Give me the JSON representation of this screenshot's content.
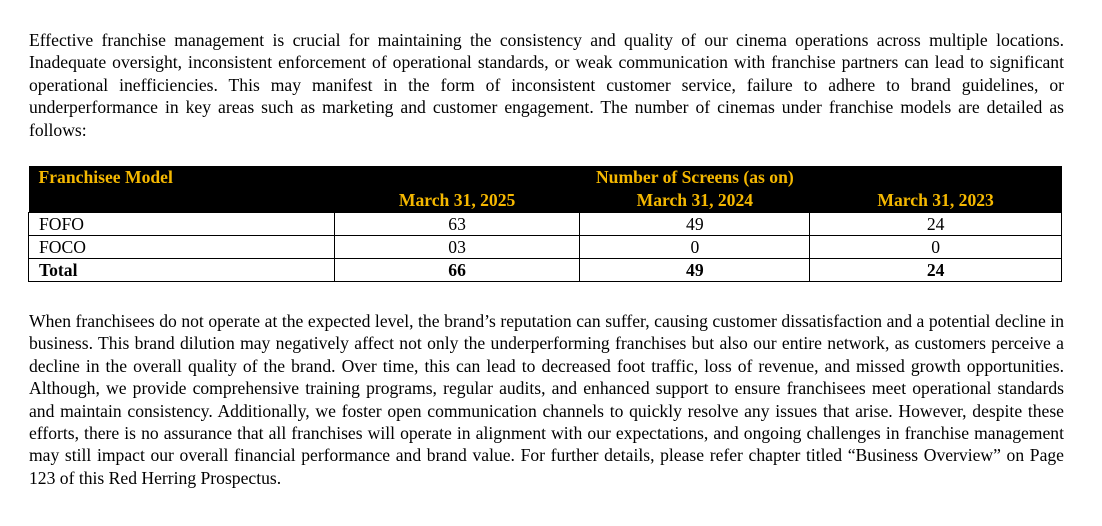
{
  "paragraphs": [
    "Effective franchise management is crucial for maintaining the consistency and quality of our cinema operations across multiple locations. Inadequate oversight, inconsistent enforcement of operational standards, or weak communication with franchise partners can lead to significant operational inefficiencies. This may manifest in the form of inconsistent customer service, failure to adhere to brand guidelines, or underperformance in key areas such as marketing and customer engagement. The number of cinemas under franchise models are detailed as follows:",
    "When franchisees do not operate at the expected level, the brand’s reputation can suffer, causing customer dissatisfaction and a potential decline in business. This brand dilution may negatively affect not only the underperforming franchises but also our entire network, as customers perceive a decline in the overall quality of the brand. Over time, this can lead to decreased foot traffic, loss of revenue, and missed growth opportunities. Although, we provide comprehensive training programs, regular audits, and enhanced support to ensure franchisees meet operational standards and maintain consistency. Additionally, we foster open communication channels to quickly resolve any issues that arise. However, despite these efforts, there is no assurance that all franchises will operate in alignment with our expectations, and ongoing challenges in franchise management may still impact our overall financial performance and brand value. For further details, please refer chapter titled “Business Overview” on Page 123 of this Red Herring Prospectus."
  ],
  "table": {
    "header_model": "Franchisee Model",
    "header_group": "Number of Screens (as on)",
    "columns": [
      "March 31, 2025",
      "March 31, 2024",
      "March 31, 2023"
    ],
    "rows": [
      {
        "label": "FOFO",
        "values": [
          "63",
          "49",
          "24"
        ]
      },
      {
        "label": "FOCO",
        "values": [
          "03",
          "0",
          "0"
        ]
      },
      {
        "label": "Total",
        "values": [
          "66",
          "49",
          "24"
        ]
      }
    ],
    "header_bg": "#000000",
    "header_text_color": "#f5b800"
  }
}
